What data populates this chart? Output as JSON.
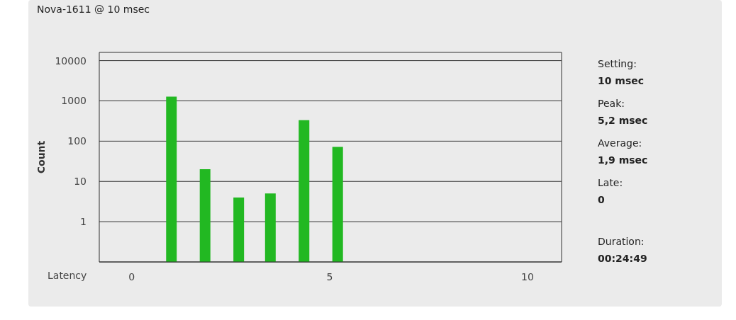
{
  "chart_data": {
    "type": "bar",
    "title": "Nova-1611 @ 10 msec",
    "xlabel": "Latency",
    "ylabel": "Count",
    "x": [
      1.0,
      1.85,
      2.7,
      3.5,
      4.35,
      5.2
    ],
    "series": [
      {
        "color": "#22b822",
        "values": [
          1270,
          20,
          4,
          5,
          330,
          72
        ]
      }
    ],
    "xlim": [
      -0.82,
      10.86
    ],
    "xticks": [
      0,
      5,
      10
    ],
    "ylim": [
      0.1,
      16000
    ],
    "yticks": [
      1,
      10,
      100,
      1000,
      10000
    ],
    "log": "y",
    "grid": "y",
    "annotations": [
      "Setting:",
      "10 msec",
      "Peak:",
      "5,2 msec",
      "Average:",
      "1,9 msec",
      "Late:",
      "0",
      "Duration:",
      "00:24:49"
    ]
  }
}
